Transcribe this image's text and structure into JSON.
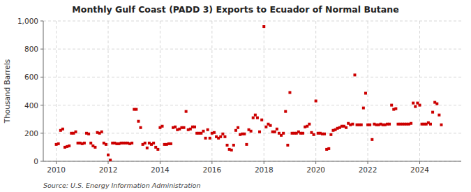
{
  "chart_data": {
    "type": "scatter",
    "title": "Monthly Gulf Coast (PADD 3) Exports to Ecuador of Normal Butane",
    "y_label": "Thousand Barrels",
    "annotation": "Source: U.S. Energy Information Administration",
    "color": "#cc0000",
    "marker": "square",
    "grid": true,
    "xlim": [
      2009.5,
      2025.6
    ],
    "xticks": [
      2010,
      2012,
      2014,
      2016,
      2018,
      2020,
      2022,
      2024
    ],
    "ylim": [
      0,
      1000
    ],
    "yticks": [
      0,
      200,
      400,
      600,
      800,
      {
        "value": 1000,
        "label": "1,000"
      }
    ],
    "x": [
      2010.0,
      2010.083,
      2010.167,
      2010.25,
      2010.333,
      2010.417,
      2010.5,
      2010.583,
      2010.667,
      2010.75,
      2010.833,
      2010.917,
      2011.0,
      2011.083,
      2011.167,
      2011.25,
      2011.333,
      2011.417,
      2011.5,
      2011.583,
      2011.667,
      2011.75,
      2011.833,
      2011.917,
      2012.0,
      2012.083,
      2012.167,
      2012.25,
      2012.333,
      2012.417,
      2012.5,
      2012.583,
      2012.667,
      2012.75,
      2012.833,
      2012.917,
      2013.0,
      2013.083,
      2013.167,
      2013.25,
      2013.333,
      2013.417,
      2013.5,
      2013.583,
      2013.667,
      2013.75,
      2013.833,
      2013.917,
      2014.0,
      2014.083,
      2014.167,
      2014.25,
      2014.333,
      2014.417,
      2014.5,
      2014.583,
      2014.667,
      2014.75,
      2014.833,
      2014.917,
      2015.0,
      2015.083,
      2015.167,
      2015.25,
      2015.333,
      2015.417,
      2015.5,
      2015.583,
      2015.667,
      2015.75,
      2015.833,
      2015.917,
      2016.0,
      2016.083,
      2016.167,
      2016.25,
      2016.333,
      2016.417,
      2016.5,
      2016.583,
      2016.667,
      2016.75,
      2016.833,
      2016.917,
      2017.0,
      2017.083,
      2017.167,
      2017.25,
      2017.333,
      2017.417,
      2017.5,
      2017.583,
      2017.667,
      2017.75,
      2017.833,
      2017.917,
      2018.0,
      2018.083,
      2018.167,
      2018.25,
      2018.333,
      2018.417,
      2018.5,
      2018.583,
      2018.667,
      2018.75,
      2018.833,
      2018.917,
      2019.0,
      2019.083,
      2019.167,
      2019.25,
      2019.333,
      2019.417,
      2019.5,
      2019.583,
      2019.667,
      2019.75,
      2019.833,
      2019.917,
      2020.0,
      2020.083,
      2020.167,
      2020.25,
      2020.333,
      2020.417,
      2020.5,
      2020.583,
      2020.667,
      2020.75,
      2020.833,
      2020.917,
      2021.0,
      2021.083,
      2021.167,
      2021.25,
      2021.333,
      2021.417,
      2021.5,
      2021.583,
      2021.667,
      2021.75,
      2021.833,
      2021.917,
      2022.0,
      2022.083,
      2022.167,
      2022.25,
      2022.333,
      2022.417,
      2022.5,
      2022.583,
      2022.667,
      2022.75,
      2022.833,
      2022.917,
      2023.0,
      2023.083,
      2023.167,
      2023.25,
      2023.333,
      2023.417,
      2023.5,
      2023.583,
      2023.667,
      2023.75,
      2023.833,
      2023.917,
      2024.0,
      2024.083,
      2024.167,
      2024.25,
      2024.333,
      2024.417,
      2024.5,
      2024.583,
      2024.667,
      2024.75,
      2024.833
    ],
    "values": [
      120,
      125,
      220,
      230,
      100,
      105,
      110,
      200,
      200,
      210,
      130,
      130,
      125,
      130,
      200,
      195,
      130,
      110,
      100,
      205,
      200,
      210,
      130,
      120,
      45,
      8,
      130,
      130,
      125,
      125,
      130,
      130,
      130,
      130,
      125,
      130,
      370,
      370,
      285,
      240,
      120,
      130,
      95,
      130,
      120,
      130,
      100,
      85,
      240,
      250,
      120,
      120,
      125,
      125,
      240,
      245,
      225,
      230,
      240,
      240,
      355,
      225,
      230,
      245,
      245,
      200,
      200,
      200,
      215,
      165,
      225,
      165,
      200,
      205,
      175,
      165,
      175,
      195,
      175,
      115,
      85,
      80,
      115,
      220,
      240,
      190,
      195,
      195,
      120,
      225,
      215,
      310,
      330,
      310,
      210,
      295,
      960,
      245,
      265,
      255,
      210,
      210,
      230,
      200,
      185,
      200,
      355,
      115,
      490,
      200,
      200,
      200,
      210,
      200,
      200,
      245,
      250,
      265,
      205,
      190,
      430,
      200,
      200,
      195,
      195,
      85,
      90,
      190,
      220,
      225,
      235,
      240,
      250,
      250,
      240,
      270,
      260,
      265,
      615,
      260,
      260,
      260,
      380,
      485,
      260,
      260,
      155,
      265,
      260,
      260,
      265,
      260,
      260,
      265,
      265,
      400,
      370,
      375,
      265,
      265,
      265,
      265,
      265,
      265,
      270,
      415,
      390,
      415,
      400,
      265,
      265,
      265,
      275,
      265,
      350,
      420,
      410,
      330,
      260
    ]
  }
}
